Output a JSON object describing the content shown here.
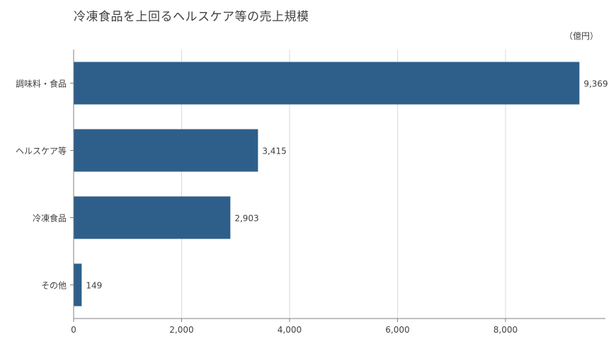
{
  "title": "冷凍食品を上回るヘルスケア等の売上規模",
  "unit": "（億円）",
  "colors": {
    "bar": "#2e5f8a",
    "grid": "#d9d9d9",
    "axis": "#808080",
    "text": "#404040"
  },
  "chart_data": {
    "type": "bar",
    "orientation": "horizontal",
    "title": "冷凍食品を上回るヘルスケア等の売上規模",
    "unit": "（億円）",
    "categories": [
      "調味料・食品",
      "ヘルスケア等",
      "冷凍食品",
      "その他"
    ],
    "values": [
      9369,
      3415,
      2903,
      149
    ],
    "value_labels": [
      "9,369",
      "3,415",
      "2,903",
      "149"
    ],
    "xlim": [
      0,
      9850
    ],
    "xticks": [
      0,
      2000,
      4000,
      6000,
      8000
    ],
    "xtick_labels": [
      "0",
      "2,000",
      "4,000",
      "6,000",
      "8,000"
    ],
    "grid": "vertical",
    "legend": "none"
  }
}
